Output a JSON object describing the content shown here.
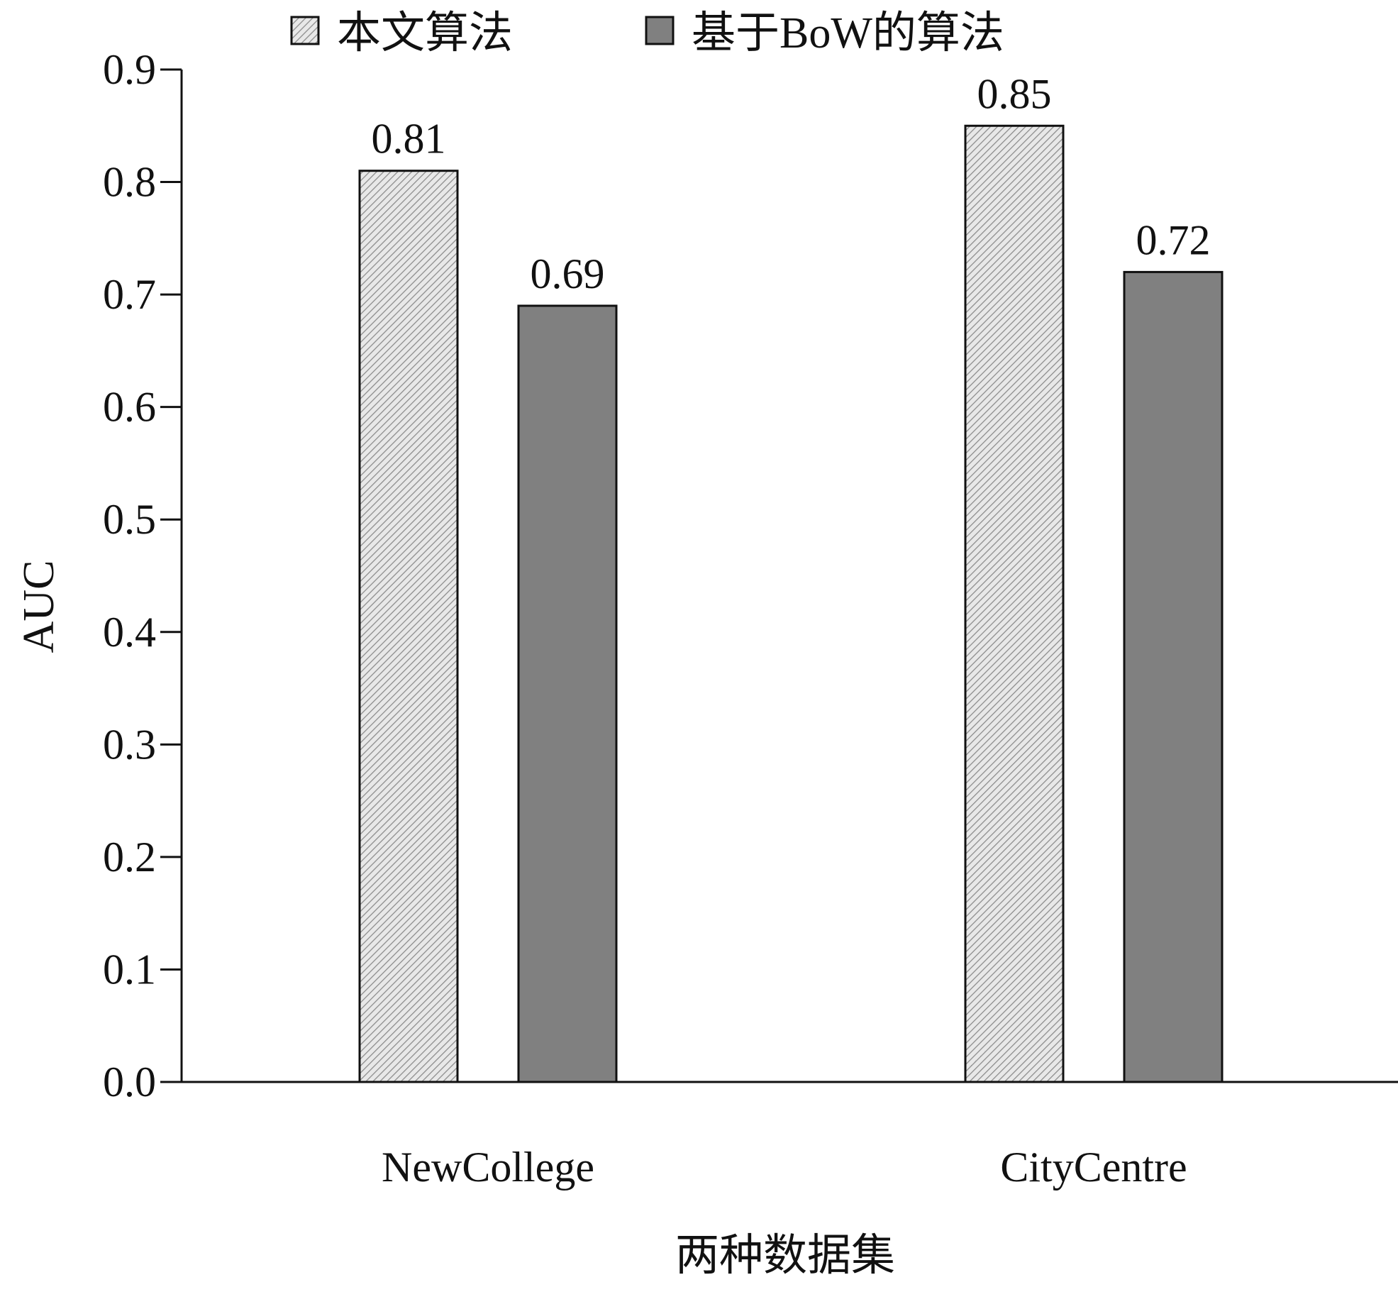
{
  "chart_data": {
    "type": "bar",
    "title": "",
    "xlabel": "两种数据集",
    "ylabel": "AUC",
    "ylim": [
      0,
      0.9
    ],
    "yticks": [
      "0.0",
      "0.1",
      "0.2",
      "0.3",
      "0.4",
      "0.5",
      "0.6",
      "0.7",
      "0.8",
      "0.9"
    ],
    "categories": [
      "NewCollege",
      "CityCentre"
    ],
    "series": [
      {
        "name": "本文算法",
        "values": [
          0.81,
          0.85
        ],
        "labels": [
          "0.81",
          "0.85"
        ],
        "color": "#d9d9d9",
        "pattern": "hatch"
      },
      {
        "name": "基于BoW的算法",
        "values": [
          0.69,
          0.72
        ],
        "labels": [
          "0.69",
          "0.72"
        ],
        "color": "#808080",
        "pattern": "solid"
      }
    ],
    "legend_position": "top",
    "grid": false
  }
}
